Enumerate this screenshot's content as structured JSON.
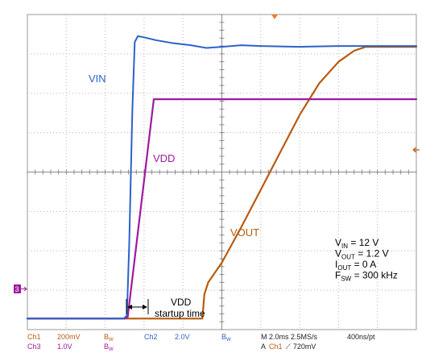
{
  "chart_data": {
    "type": "line",
    "time_per_div": "2.0ms",
    "grid": true,
    "x_divisions": 10,
    "y_divisions": 8,
    "x_unit": "div",
    "y_unit": "div",
    "series": [
      {
        "name": "VIN",
        "color": "#2a62c8",
        "points": [
          [
            0,
            0.28
          ],
          [
            2.48,
            0.28
          ],
          [
            2.56,
            0.36
          ],
          [
            2.62,
            2.2
          ],
          [
            2.7,
            5.6
          ],
          [
            2.76,
            7.3
          ],
          [
            2.84,
            7.45
          ],
          [
            3.0,
            7.42
          ],
          [
            3.3,
            7.35
          ],
          [
            3.7,
            7.28
          ],
          [
            4.2,
            7.22
          ],
          [
            4.6,
            7.15
          ],
          [
            5.0,
            7.18
          ],
          [
            5.5,
            7.22
          ],
          [
            6.0,
            7.2
          ],
          [
            7.0,
            7.18
          ],
          [
            8.0,
            7.2
          ],
          [
            10.0,
            7.2
          ]
        ]
      },
      {
        "name": "VDD",
        "color": "#9d1aa0",
        "points": [
          [
            0,
            0.28
          ],
          [
            2.5,
            0.28
          ],
          [
            2.58,
            0.32
          ],
          [
            3.25,
            5.85
          ],
          [
            4.0,
            5.85
          ],
          [
            6.0,
            5.85
          ],
          [
            10.0,
            5.85
          ]
        ]
      },
      {
        "name": "VOUT",
        "color": "#b85a0f",
        "points": [
          [
            0,
            0.28
          ],
          [
            2.58,
            0.28
          ],
          [
            4.5,
            0.28
          ],
          [
            4.55,
            0.9
          ],
          [
            4.65,
            1.2
          ],
          [
            5.0,
            1.7
          ],
          [
            5.5,
            2.6
          ],
          [
            6.0,
            3.55
          ],
          [
            6.5,
            4.5
          ],
          [
            7.0,
            5.45
          ],
          [
            7.5,
            6.25
          ],
          [
            8.0,
            6.8
          ],
          [
            8.4,
            7.08
          ],
          [
            8.7,
            7.18
          ],
          [
            10.0,
            7.18
          ]
        ]
      }
    ],
    "annotations": {
      "vin": "VIN",
      "vdd": "VDD",
      "vout": "VOUT",
      "startup_1": "VDD",
      "startup_2": "startup time"
    },
    "conditions": [
      {
        "main": "V",
        "sub": "IN",
        "rest": " = 12 V"
      },
      {
        "main": "V",
        "sub": "OUT",
        "rest": " = 1.2 V"
      },
      {
        "main": "I",
        "sub": "OUT",
        "rest": " = 0 A"
      },
      {
        "main": "F",
        "sub": "SW",
        "rest": " = 300 kHz"
      }
    ],
    "ground_marker": "3",
    "footer": {
      "ch1": "Ch1",
      "ch1_scale": "200mV",
      "bw_a": "B",
      "bw_a_sub": "W",
      "ch2": "Ch2",
      "ch2_scale": "2.0V",
      "bw_b": "B",
      "bw_b_sub": "W",
      "timebase": "M 2.0ms 2.5MS/s",
      "pts": "400ns/pt",
      "ch3": "Ch3",
      "ch3_scale": "1.0V",
      "bw_c": "B",
      "bw_c_sub": "W",
      "trigger_a": "A",
      "trigger_ch": "Ch1",
      "trigger_slope": "⟋",
      "trigger_level": "720mV"
    }
  }
}
